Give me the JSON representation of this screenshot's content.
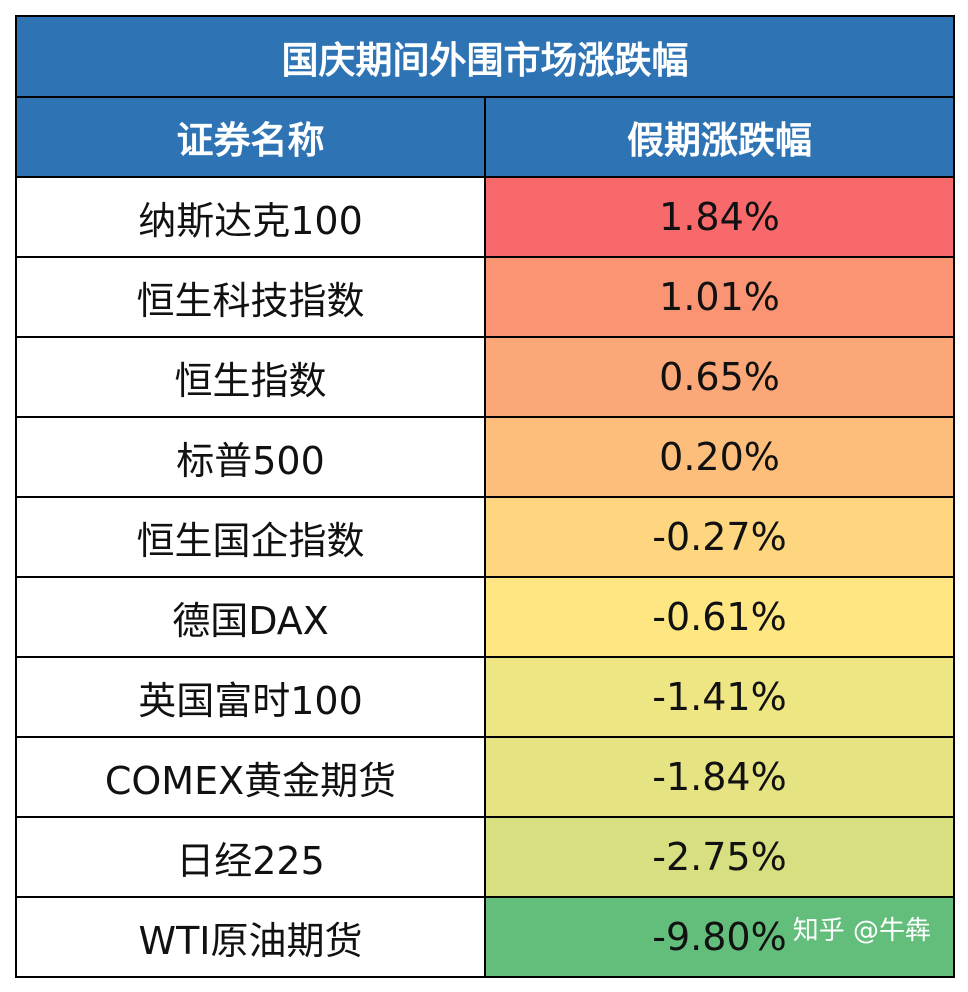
{
  "chart_data": {
    "type": "table",
    "title": "国庆期间外围市场涨跌幅",
    "columns": [
      "证券名称",
      "假期涨跌幅"
    ],
    "rows": [
      {
        "name": "纳斯达克100",
        "change": "1.84%",
        "value": 1.84,
        "color": "#f8696b"
      },
      {
        "name": "恒生科技指数",
        "change": "1.01%",
        "value": 1.01,
        "color": "#fa9473"
      },
      {
        "name": "恒生指数",
        "change": "0.65%",
        "value": 0.65,
        "color": "#fba777"
      },
      {
        "name": "标普500",
        "change": "0.20%",
        "value": 0.2,
        "color": "#fdbe7b"
      },
      {
        "name": "恒生国企指数",
        "change": "-0.27%",
        "value": -0.27,
        "color": "#fed67f"
      },
      {
        "name": "德国DAX",
        "change": "-0.61%",
        "value": -0.61,
        "color": "#fee783"
      },
      {
        "name": "英国富时100",
        "change": "-1.41%",
        "value": -1.41,
        "color": "#eee683"
      },
      {
        "name": "COMEX黄金期货",
        "change": "-1.84%",
        "value": -1.84,
        "color": "#e5e382"
      },
      {
        "name": "日经225",
        "change": "-2.75%",
        "value": -2.75,
        "color": "#d8df81"
      },
      {
        "name": "WTI原油期货",
        "change": "-9.80%",
        "value": -9.8,
        "color": "#63be7b"
      }
    ]
  },
  "colors": {
    "header_bg": "#2e74b5",
    "header_text": "#ffffff",
    "border": "#000000"
  },
  "watermark": "知乎 @牛犇"
}
